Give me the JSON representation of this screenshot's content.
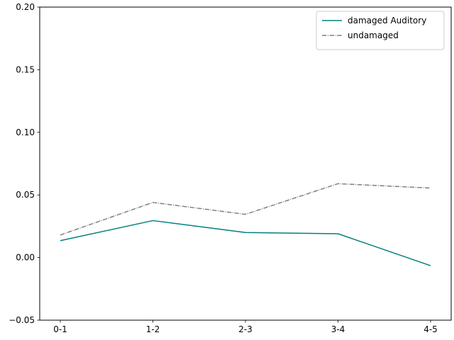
{
  "chart_data": {
    "type": "line",
    "title": "",
    "xlabel": "",
    "ylabel": "",
    "categories": [
      "0-1",
      "1-2",
      "2-3",
      "3-4",
      "4-5"
    ],
    "ylim": [
      -0.05,
      0.2
    ],
    "yticks": [
      "−0.05",
      "0.00",
      "0.05",
      "0.10",
      "0.15",
      "0.20"
    ],
    "ytick_values": [
      -0.05,
      0.0,
      0.05,
      0.1,
      0.15,
      0.2
    ],
    "grid": false,
    "legend_position": "top-right",
    "series": [
      {
        "name": "damaged Auditory",
        "values": [
          0.0135,
          0.0295,
          0.02,
          0.019,
          -0.0065
        ],
        "color": "#008080",
        "style": "solid"
      },
      {
        "name": "undamaged",
        "values": [
          0.018,
          0.044,
          0.0345,
          0.059,
          0.0555
        ],
        "color": "#808080",
        "style": "dashdot"
      }
    ]
  }
}
